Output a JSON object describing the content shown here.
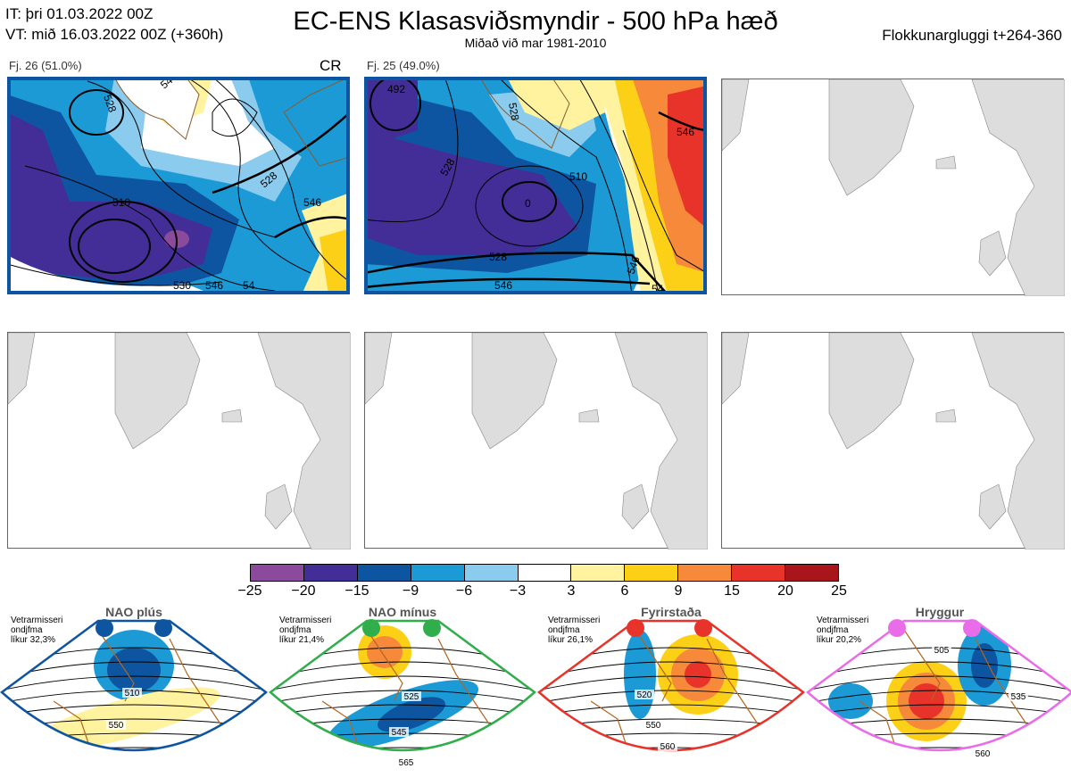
{
  "header": {
    "init_time": "IT: þri 01.03.2022 00Z",
    "valid_time": "VT: mið 16.03.2022 00Z  (+360h)",
    "title": "EC-ENS Klasasviðsmyndir - 500 hPa hæð",
    "subtitle": "Miðað við mar 1981-2010",
    "window": "Flokkunargluggi t+264-360"
  },
  "clusters": [
    {
      "label": "Fj. 26 (51.0%)",
      "regime_tag": "CR"
    },
    {
      "label": "Fj. 25 (49.0%)",
      "regime_tag": ""
    }
  ],
  "contour_labels": {
    "panel1": [
      "510",
      "528",
      "546",
      "546",
      "530",
      "528",
      "546",
      "54"
    ],
    "panel2": [
      "492",
      "528",
      "510",
      "528",
      "528",
      "546",
      "546",
      "0",
      "546",
      "54"
    ]
  },
  "chart_data": {
    "type": "heatmap",
    "title": "EC-ENS Klasasviðsmyndir - 500 hPa hæð",
    "colorbar": {
      "ticks": [
        "−25",
        "−20",
        "−15",
        "−9",
        "−6",
        "−3",
        "3",
        "6",
        "9",
        "15",
        "20",
        "25"
      ],
      "colors": [
        "#8b4a9c",
        "#432e97",
        "#0e55a1",
        "#1c9ad6",
        "#8bcbee",
        "#ffffff",
        "#fff3a0",
        "#fdd018",
        "#f6893a",
        "#e8332a",
        "#a8151b"
      ]
    },
    "clusters": [
      {
        "name": "Fj. 26",
        "share_pct": 51.0,
        "regime": "CR"
      },
      {
        "name": "Fj. 25",
        "share_pct": 49.0,
        "regime": ""
      }
    ]
  },
  "regimes": [
    {
      "name": "NAO plús",
      "note": [
        "Vetrarmisseri",
        "ondjfma",
        "líkur 32,3%"
      ],
      "color": "#0e55a1",
      "labels": [
        "510",
        "550"
      ]
    },
    {
      "name": "NAO mínus",
      "note": [
        "Vetrarmisseri",
        "ondjfma",
        "líkur 21,4%"
      ],
      "color": "#2fae4b",
      "labels": [
        "525",
        "545",
        "565"
      ]
    },
    {
      "name": "Fyrirstaða",
      "note": [
        "Vetrarmisseri",
        "ondjfma",
        "líkur 26,1%"
      ],
      "color": "#e8332a",
      "labels": [
        "520",
        "550",
        "560"
      ]
    },
    {
      "name": "Hryggur",
      "note": [
        "Vetrarmisseri",
        "ondjfma",
        "líkur 20,2%"
      ],
      "color": "#e96de9",
      "labels": [
        "505",
        "535",
        "560"
      ]
    }
  ]
}
